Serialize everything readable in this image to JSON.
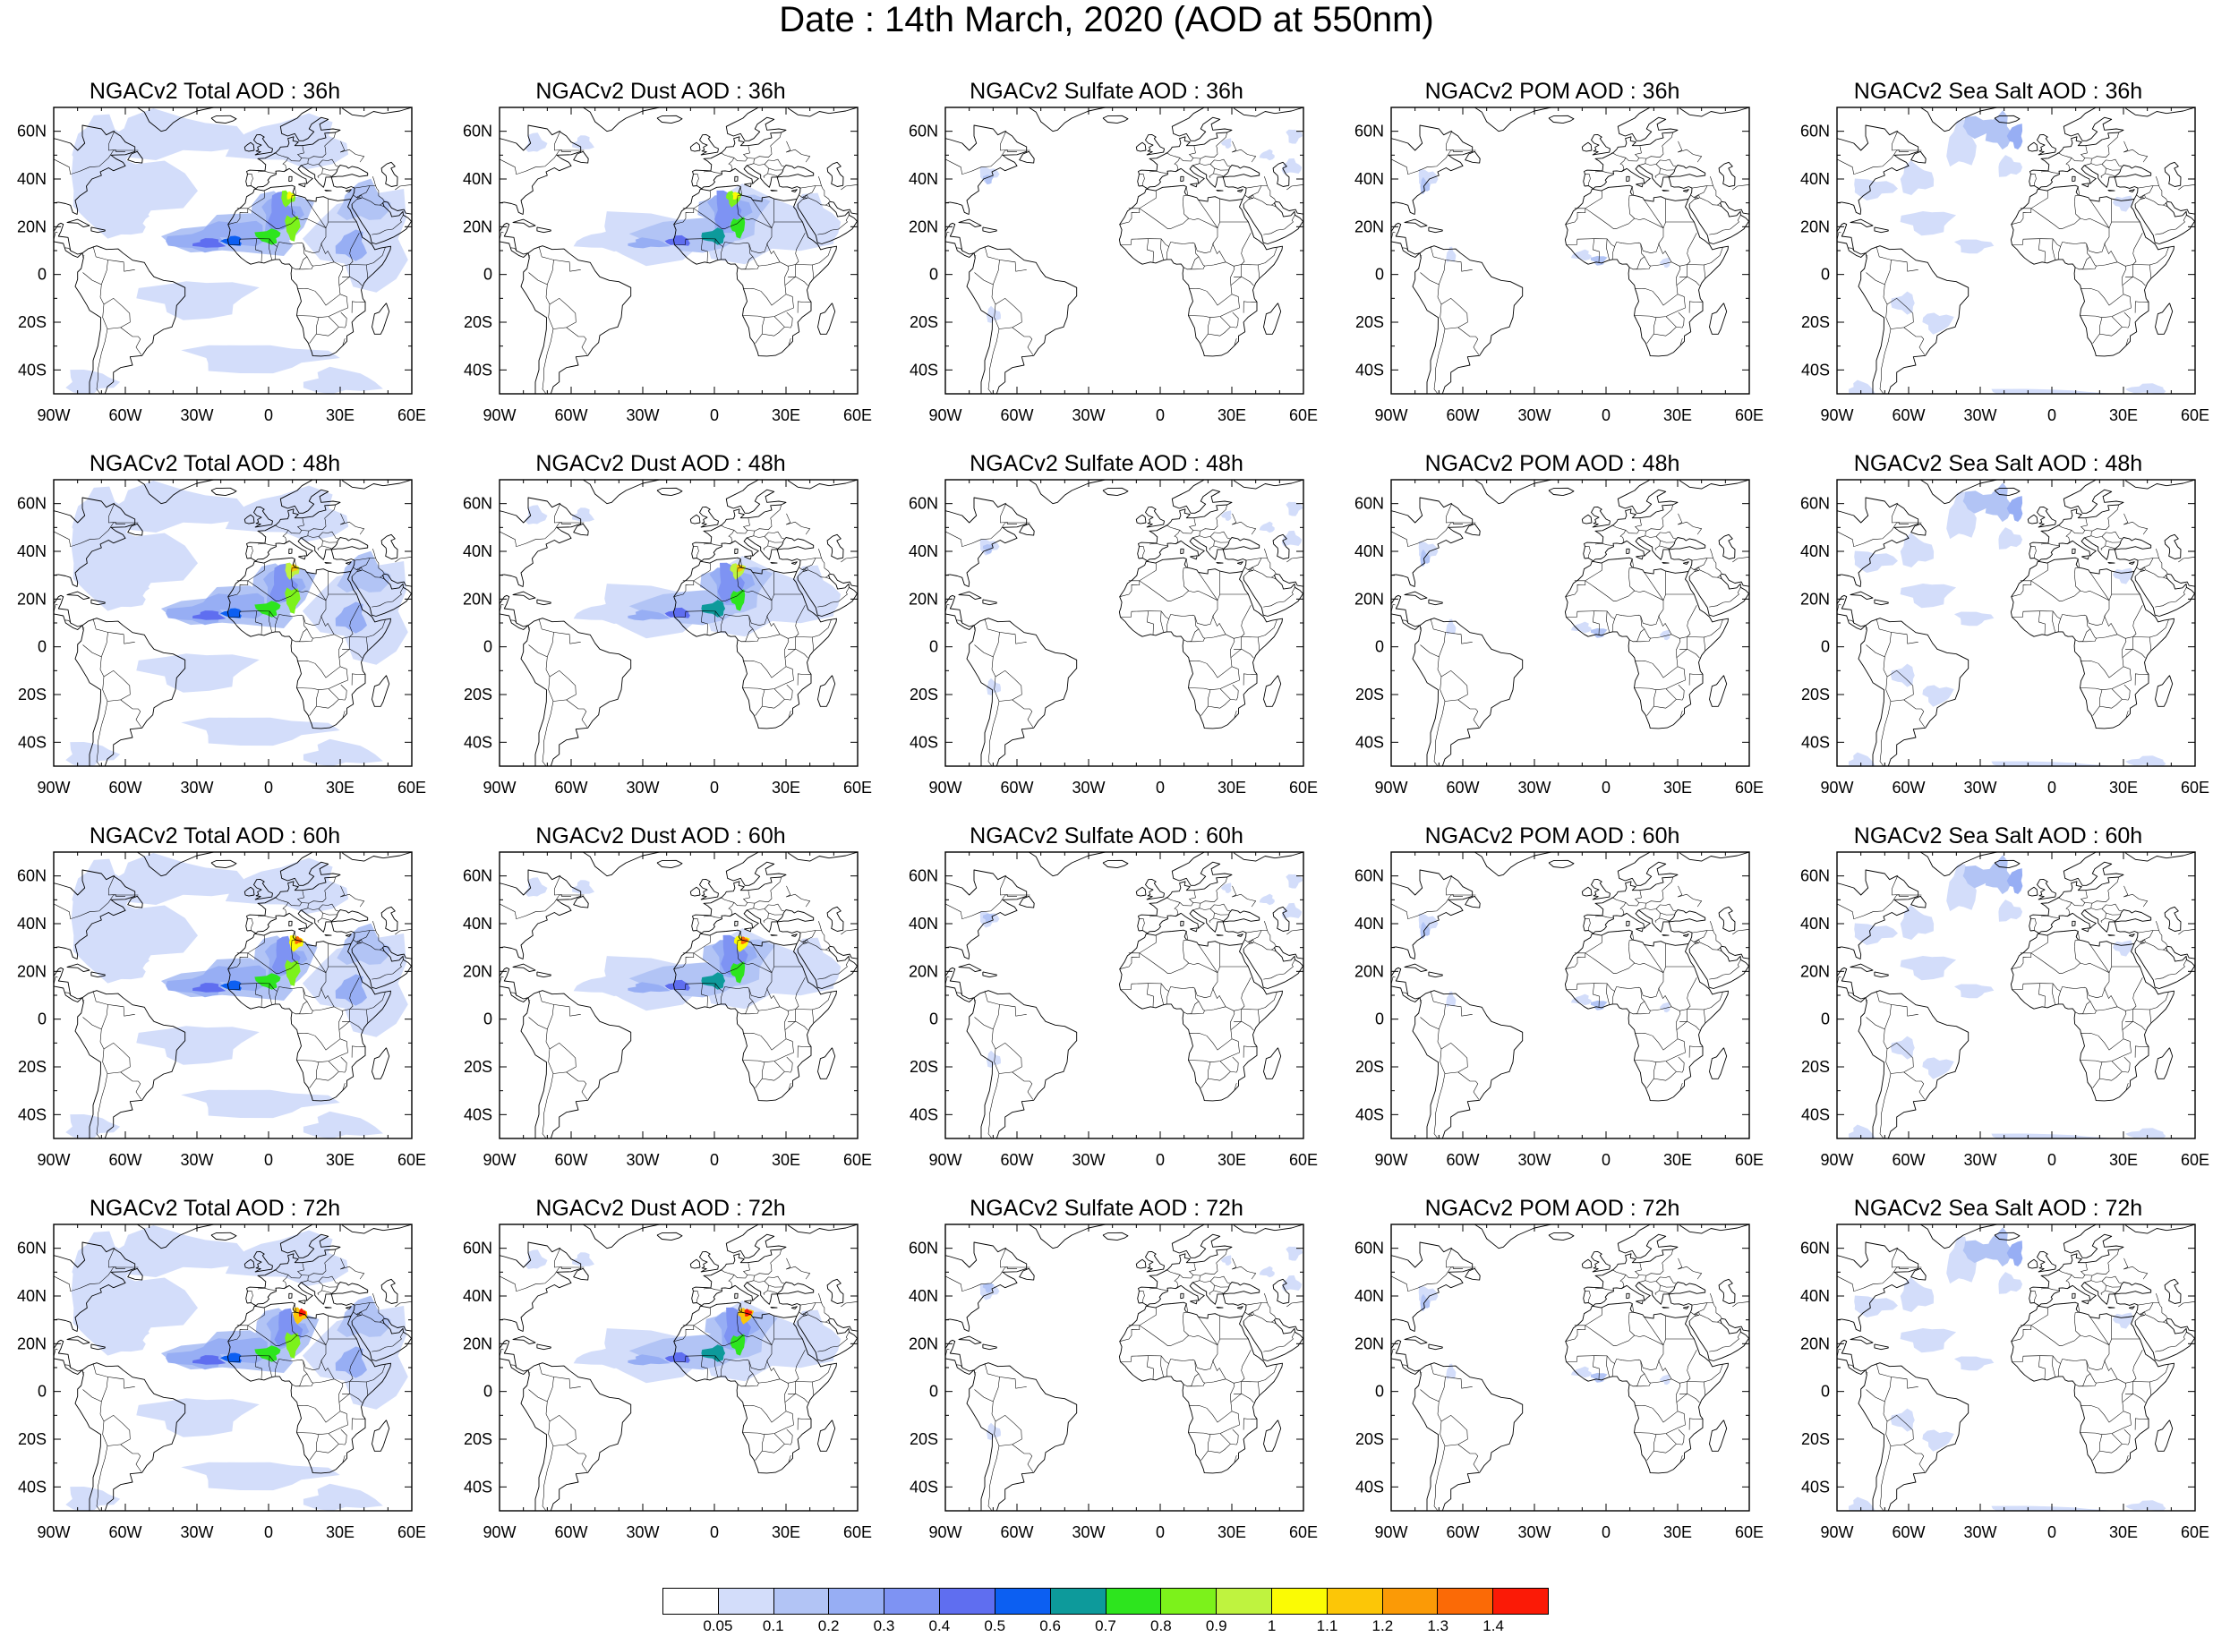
{
  "figure": {
    "title": "Date : 14th March, 2020 (AOD at 550nm)"
  },
  "axes": {
    "lon_ticks": [
      "90W",
      "60W",
      "30W",
      "0",
      "30E",
      "60E"
    ],
    "lat_ticks": [
      "60N",
      "40N",
      "20N",
      "0",
      "20S",
      "40S"
    ],
    "lon_range": [
      -90,
      60
    ],
    "lat_range": [
      -50,
      70
    ]
  },
  "panels": [
    {
      "title": "NGACv2 Total AOD : 36h",
      "species": "total",
      "hour": 36
    },
    {
      "title": "NGACv2 Dust AOD : 36h",
      "species": "dust",
      "hour": 36
    },
    {
      "title": "NGACv2 Sulfate AOD : 36h",
      "species": "sulfate",
      "hour": 36
    },
    {
      "title": "NGACv2 POM AOD : 36h",
      "species": "pom",
      "hour": 36
    },
    {
      "title": "NGACv2 Sea Salt AOD : 36h",
      "species": "seasalt",
      "hour": 36
    },
    {
      "title": "NGACv2 Total AOD : 48h",
      "species": "total",
      "hour": 48
    },
    {
      "title": "NGACv2 Dust AOD : 48h",
      "species": "dust",
      "hour": 48
    },
    {
      "title": "NGACv2 Sulfate AOD : 48h",
      "species": "sulfate",
      "hour": 48
    },
    {
      "title": "NGACv2 POM AOD : 48h",
      "species": "pom",
      "hour": 48
    },
    {
      "title": "NGACv2 Sea Salt AOD : 48h",
      "species": "seasalt",
      "hour": 48
    },
    {
      "title": "NGACv2 Total AOD : 60h",
      "species": "total",
      "hour": 60
    },
    {
      "title": "NGACv2 Dust AOD : 60h",
      "species": "dust",
      "hour": 60
    },
    {
      "title": "NGACv2 Sulfate AOD : 60h",
      "species": "sulfate",
      "hour": 60
    },
    {
      "title": "NGACv2 POM AOD : 60h",
      "species": "pom",
      "hour": 60
    },
    {
      "title": "NGACv2 Sea Salt AOD : 60h",
      "species": "seasalt",
      "hour": 60
    },
    {
      "title": "NGACv2 Total AOD : 72h",
      "species": "total",
      "hour": 72
    },
    {
      "title": "NGACv2 Dust AOD : 72h",
      "species": "dust",
      "hour": 72
    },
    {
      "title": "NGACv2 Sulfate AOD : 72h",
      "species": "sulfate",
      "hour": 72
    },
    {
      "title": "NGACv2 POM AOD : 72h",
      "species": "pom",
      "hour": 72
    },
    {
      "title": "NGACv2 Sea Salt  AOD : 72h",
      "species": "seasalt",
      "hour": 72
    }
  ],
  "colorbar": {
    "labels": [
      "0.05",
      "0.1",
      "0.2",
      "0.3",
      "0.4",
      "0.5",
      "0.6",
      "0.7",
      "0.8",
      "0.9",
      "1",
      "1.1",
      "1.2",
      "1.3",
      "1.4"
    ],
    "colors": [
      "#ffffff",
      "#d3ddfa",
      "#b2c4f5",
      "#97aef4",
      "#7e93f3",
      "#5f6ef0",
      "#0c5ff2",
      "#0d9a9b",
      "#2de51e",
      "#7cf21b",
      "#bff33f",
      "#fbfb04",
      "#fcc607",
      "#fb9a06",
      "#fb6a06",
      "#fb1a06"
    ]
  }
}
